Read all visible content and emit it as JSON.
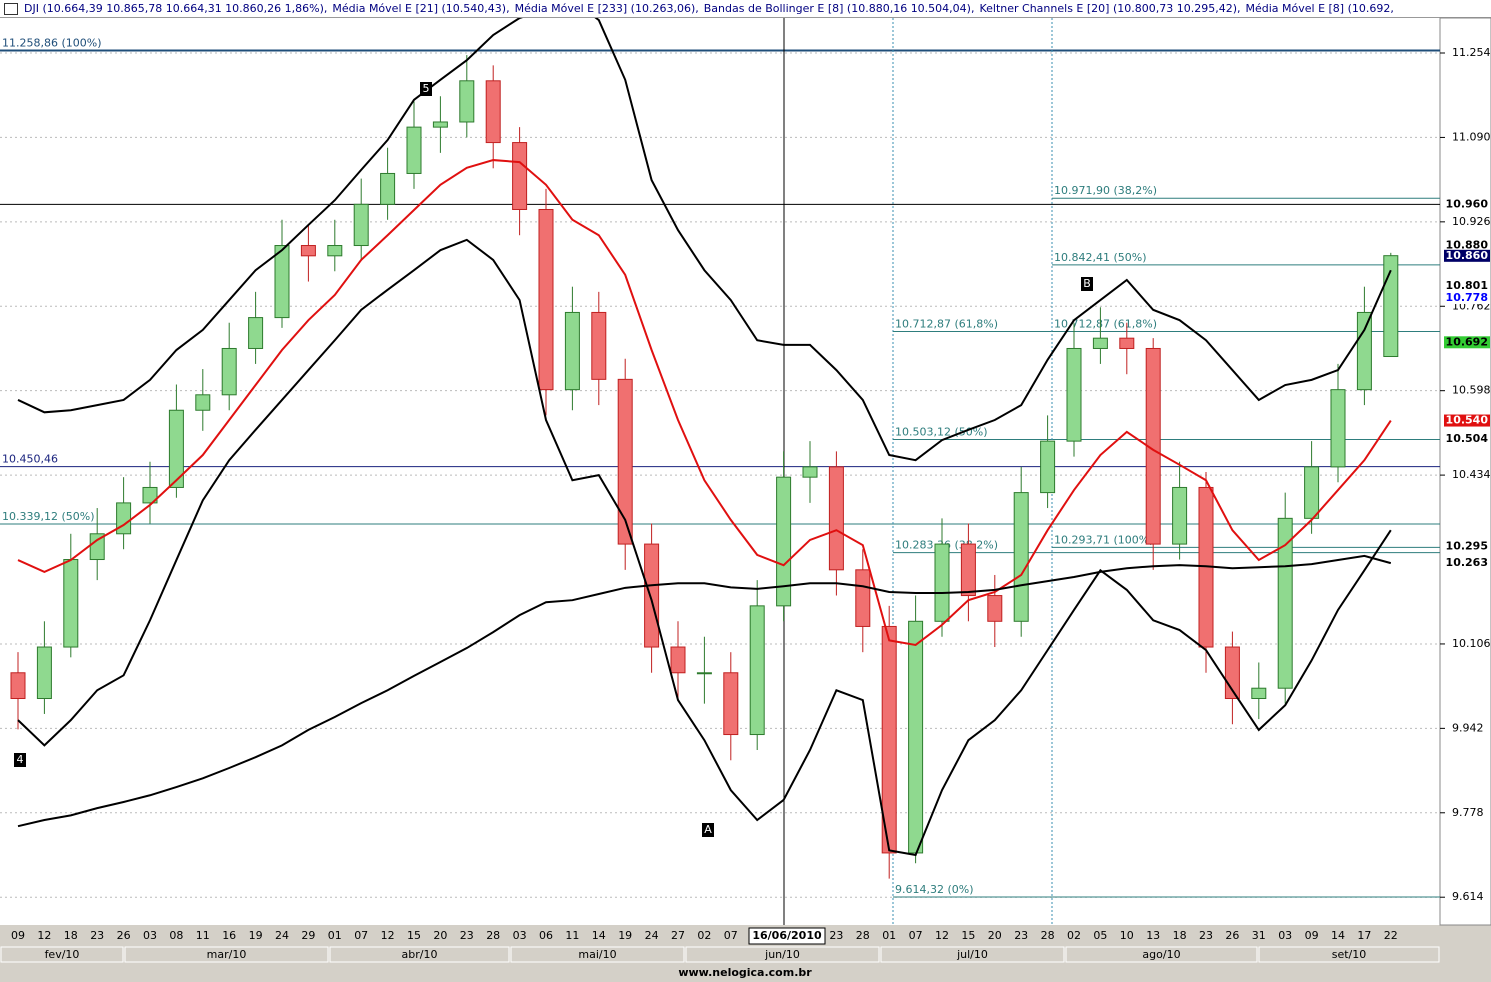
{
  "chart_data": {
    "type": "candlestick",
    "header": [
      "DJI (10.664,39  10.865,78  10.664,31  10.860,26  1,86%),",
      "Média Móvel E [21] (10.540,43),",
      "Média Móvel E [233] (10.263,06),",
      "Bandas de Bollinger E [8] (10.880,16  10.504,04),",
      "Keltner Channels E [20] (10.800,73  10.295,42),",
      "Média Móvel E [8] (10.692,"
    ],
    "categories": [
      "09",
      "12",
      "18",
      "23",
      "26",
      "03",
      "08",
      "11",
      "16",
      "19",
      "24",
      "29",
      "01",
      "07",
      "12",
      "15",
      "20",
      "23",
      "28",
      "03",
      "06",
      "11",
      "14",
      "19",
      "24",
      "27",
      "02",
      "07",
      null,
      null,
      null,
      "23",
      "28",
      "01",
      "07",
      "12",
      "15",
      "20",
      "23",
      "28",
      "02",
      "05",
      "10",
      "13",
      "18",
      "23",
      "26",
      "31",
      "03",
      "09",
      "14",
      "17",
      "22"
    ],
    "months": [
      "fev/10",
      "mar/10",
      "abr/10",
      "mai/10",
      "jun/10",
      "jul/10",
      "ago/10",
      "set/10"
    ],
    "crosshair_date": "16/06/2010",
    "watermark": "www.nelogica.com.br",
    "up_color": "#8fd98f",
    "down_color": "#f07070",
    "open": [
      10050,
      10000,
      10100,
      10270,
      10320,
      10380,
      10410,
      10560,
      10590,
      10680,
      10740,
      10880,
      10860,
      10880,
      10960,
      11020,
      11110,
      11120,
      11200,
      11080,
      10950,
      10600,
      10750,
      10620,
      10300,
      10100,
      10050,
      10050,
      9930,
      10180,
      10430,
      10450,
      10250,
      10140,
      9700,
      10150,
      10300,
      10200,
      10150,
      10400,
      10500,
      10680,
      10700,
      10680,
      10300,
      10410,
      10100,
      10000,
      10020,
      10350,
      10450,
      10600,
      10664.39
    ],
    "high": [
      10090,
      10150,
      10320,
      10370,
      10430,
      10460,
      10610,
      10640,
      10730,
      10790,
      10930,
      10920,
      10930,
      11010,
      11070,
      11160,
      11170,
      11250,
      11230,
      11110,
      10990,
      10800,
      10790,
      10660,
      10340,
      10150,
      10120,
      10090,
      10230,
      10480,
      10500,
      10480,
      10290,
      10180,
      10200,
      10350,
      10340,
      10240,
      10450,
      10550,
      10730,
      10760,
      10730,
      10700,
      10460,
      10440,
      10130,
      10070,
      10400,
      10500,
      10650,
      10800,
      10865.78
    ],
    "low": [
      9940,
      9970,
      10080,
      10230,
      10290,
      10340,
      10390,
      10520,
      10560,
      10650,
      10720,
      10810,
      10830,
      10850,
      10930,
      10990,
      11060,
      11090,
      11030,
      10900,
      10550,
      10560,
      10570,
      10250,
      10050,
      10000,
      9990,
      9880,
      9900,
      10150,
      10380,
      10200,
      10090,
      9650,
      9680,
      10120,
      10150,
      10100,
      10120,
      10370,
      10470,
      10650,
      10630,
      10250,
      10270,
      10050,
      9950,
      9960,
      9990,
      10320,
      10420,
      10570,
      10664.31
    ],
    "close": [
      10000,
      10100,
      10270,
      10320,
      10380,
      10410,
      10560,
      10590,
      10680,
      10740,
      10880,
      10860,
      10880,
      10960,
      11020,
      11110,
      11120,
      11200,
      11080,
      10950,
      10600,
      10750,
      10620,
      10300,
      10100,
      10050,
      10050,
      9930,
      10180,
      10430,
      10450,
      10250,
      10140,
      9700,
      10150,
      10300,
      10200,
      10150,
      10400,
      10500,
      10680,
      10700,
      10680,
      10300,
      10410,
      10100,
      10000,
      10020,
      10350,
      10450,
      10600,
      10750,
      10860.26
    ],
    "series": [
      {
        "color": "#e01010",
        "values": [
          10269,
          10246,
          10269,
          10308,
          10337,
          10376,
          10424,
          10473,
          10541,
          10609,
          10677,
          10735,
          10784,
          10852,
          10900,
          10949,
          10998,
          11031,
          11046,
          11042,
          10998,
          10930,
          10900,
          10823,
          10677,
          10541,
          10424,
          10347,
          10279,
          10259,
          10308,
          10327,
          10298,
          10113,
          10104,
          10143,
          10191,
          10207,
          10240,
          10327,
          10405,
          10473,
          10518,
          10483,
          10454,
          10424,
          10327,
          10269,
          10298,
          10347,
          10405,
          10463,
          10540
        ]
      },
      {
        "color": "#000000",
        "values": [
          9752,
          9764,
          9773,
          9787,
          9799,
          9812,
          9828,
          9845,
          9865,
          9886,
          9909,
          9939,
          9964,
          9991,
          10016,
          10044,
          10071,
          10098,
          10129,
          10162,
          10187,
          10191,
          10203,
          10215,
          10220,
          10224,
          10224,
          10216,
          10213,
          10218,
          10224,
          10224,
          10218,
          10207,
          10205,
          10205,
          10207,
          10211,
          10220,
          10228,
          10236,
          10246,
          10253,
          10257,
          10259,
          10257,
          10253,
          10255,
          10257,
          10261,
          10269,
          10277,
          10263
        ]
      },
      {
        "color": "#000000",
        "values": [
          10580,
          10556,
          10560,
          10570,
          10580,
          10619,
          10677,
          10716,
          10774,
          10832,
          10871,
          10920,
          10968,
          11027,
          11085,
          11163,
          11202,
          11240,
          11289,
          11322,
          11338,
          11357,
          11318,
          11202,
          11007,
          10910,
          10832,
          10774,
          10696,
          10687,
          10687,
          10638,
          10580,
          10473,
          10463,
          10502,
          10522,
          10541,
          10570,
          10658,
          10735,
          10774,
          10813,
          10755,
          10735,
          10696,
          10638,
          10580,
          10609,
          10619,
          10638,
          10716,
          10832
        ]
      },
      {
        "color": "#000000",
        "values": [
          9958,
          9909,
          9958,
          10016,
          10045,
          10152,
          10269,
          10385,
          10463,
          10522,
          10580,
          10638,
          10696,
          10755,
          10794,
          10832,
          10871,
          10891,
          10852,
          10774,
          10541,
          10424,
          10434,
          10347,
          10191,
          9997,
          9919,
          9822,
          9764,
          9803,
          9900,
          10016,
          9997,
          9705,
          9696,
          9822,
          9919,
          9958,
          10016,
          10094,
          10172,
          10249,
          10211,
          10152,
          10133,
          10094,
          10016,
          9939,
          9987,
          10074,
          10172,
          10249,
          10327
        ]
      }
    ],
    "ylim": [
      9560,
      11322
    ],
    "yticks": [
      {
        "value": 9614,
        "label": "9.614"
      },
      {
        "value": 9778,
        "label": "9.778"
      },
      {
        "value": 9942,
        "label": "9.942"
      },
      {
        "value": 10106,
        "label": "10.106"
      },
      {
        "value": 10434,
        "label": "10.434"
      },
      {
        "value": 10598,
        "label": "10.598"
      },
      {
        "value": 10762,
        "label": "10.762"
      },
      {
        "value": 10926,
        "label": "10.926"
      },
      {
        "value": 11090,
        "label": "11.090"
      },
      {
        "value": 11254,
        "label": "11.254"
      }
    ],
    "grid": true,
    "level_groups": [
      [
        {
          "value": 11258.86,
          "label": "11.258,86 (100%)",
          "color": "#1f4e79"
        },
        {
          "value": 10450.46,
          "label": "10.450,46",
          "color": "#1a237e"
        },
        {
          "value": 10339.12,
          "label": "10.339,12 (50%)",
          "color": "#2e7d7d"
        }
      ],
      [
        {
          "value": 10712.87,
          "label": "10.712,87 (61,8%)",
          "color": "#2e7d7d"
        },
        {
          "value": 10503.12,
          "label": "10.503,12 (50%)",
          "color": "#2e7d7d"
        },
        {
          "value": 10283.36,
          "label": "10.283,36 (38,2%)",
          "color": "#2e7d7d"
        },
        {
          "value": 9614.32,
          "label": "9.614,32 (0%)",
          "color": "#2e7d7d"
        }
      ],
      [
        {
          "value": 10971.9,
          "label": "10.971,90 (38,2%)",
          "color": "#2e7d7d"
        },
        {
          "value": 10842.41,
          "label": "10.842,41 (50%)",
          "color": "#2e7d7d"
        },
        {
          "value": 10712.87,
          "label": "10.712,87 (61,8%)",
          "color": "#2e7d7d"
        },
        {
          "value": 10293.71,
          "label": "10.293,71 (100%)",
          "color": "#2e7d7d"
        }
      ]
    ],
    "crosshair_value": 10960,
    "value_tags": [
      {
        "value": 10960,
        "label": "10.960",
        "bg": "#ffffff",
        "fg": "#000000"
      },
      {
        "value": 10880,
        "label": "10.880",
        "bg": "#ffffff",
        "fg": "#000000"
      },
      {
        "value": 10860,
        "label": "10.860",
        "bg": "#000066",
        "fg": "#ffffff"
      },
      {
        "value": 10801,
        "label": "10.801",
        "bg": "#ffffff",
        "fg": "#000000"
      },
      {
        "value": 10778,
        "label": "10.778",
        "bg": "#ffffff",
        "fg": "#0000ff"
      },
      {
        "value": 10692,
        "label": "10.692",
        "bg": "#33cc33",
        "fg": "#000000"
      },
      {
        "value": 10540,
        "label": "10.540",
        "bg": "#e01010",
        "fg": "#ffffff"
      },
      {
        "value": 10504,
        "label": "10.504",
        "bg": "#ffffff",
        "fg": "#000000"
      },
      {
        "value": 10295,
        "label": "10.295",
        "bg": "#ffffff",
        "fg": "#000000"
      },
      {
        "value": 10263,
        "label": "10.263",
        "bg": "#ffffff",
        "fg": "#000000"
      }
    ],
    "annotations": [
      "4",
      "5",
      "A",
      "B"
    ]
  }
}
